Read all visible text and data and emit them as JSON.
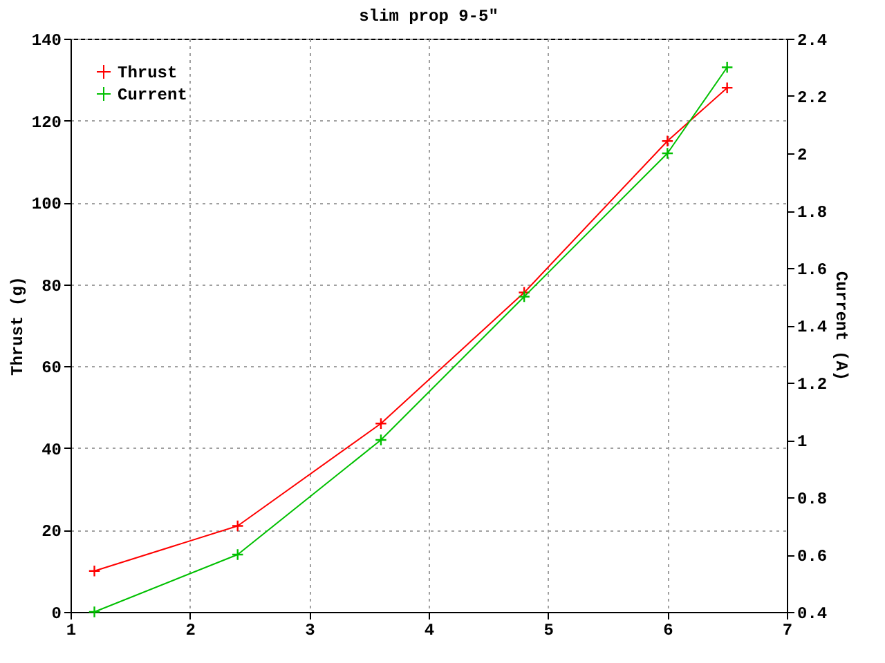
{
  "chart_data": {
    "type": "line",
    "title": "slim prop 9-5\"",
    "ylabel": "Thrust (g)",
    "y2label": "Current (A)",
    "x": [
      1.2,
      2.4,
      3.6,
      4.8,
      6.0,
      6.5
    ],
    "series": [
      {
        "name": "Thrust",
        "color": "#ff0000",
        "values": [
          10,
          21,
          46,
          78,
          115,
          128
        ]
      },
      {
        "name": "Current",
        "color": "#00c000",
        "axis": "y2",
        "values": [
          0.4,
          0.6,
          1.0,
          1.5,
          2.0,
          2.3
        ]
      }
    ],
    "xlim": [
      1,
      7
    ],
    "xticks": [
      1,
      2,
      3,
      4,
      5,
      6,
      7
    ],
    "ylim": [
      0,
      140
    ],
    "yticks": [
      0,
      20,
      40,
      60,
      80,
      100,
      120,
      140
    ],
    "y2lim": [
      0.4,
      2.4
    ],
    "y2ticks": [
      0.4,
      0.6,
      0.8,
      1,
      1.2,
      1.4,
      1.6,
      1.8,
      2,
      2.2,
      2.4
    ],
    "grid": true,
    "legend": "top left",
    "marker": "cross",
    "line_style": "solid"
  }
}
